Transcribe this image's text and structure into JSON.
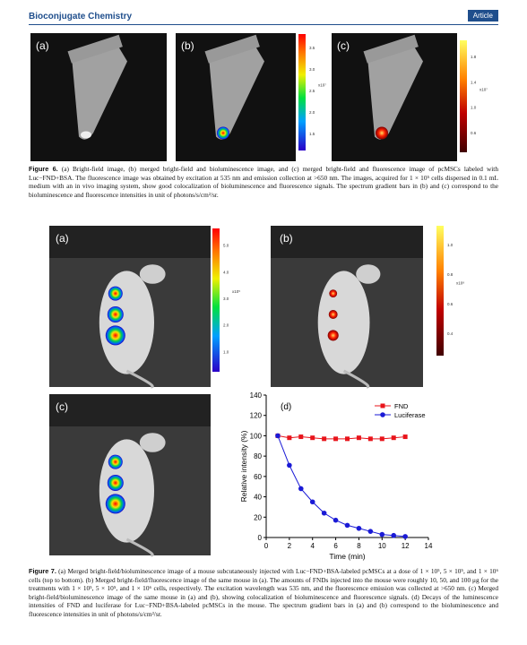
{
  "header": {
    "journal": "Bioconjugate Chemistry",
    "tag": "Article"
  },
  "figure6": {
    "panels": [
      "(a)",
      "(b)",
      "(c)"
    ],
    "colorbars": [
      {
        "labels": [
          "3.5",
          "3.0",
          "2.5",
          "2.0",
          "1.5"
        ],
        "unit": "x10⁷"
      },
      {
        "labels": [
          "1.8",
          "1.4",
          "1.0",
          "0.6"
        ],
        "unit": "x10⁷"
      }
    ],
    "caption_label": "Figure 6.",
    "caption": "(a) Bright-field image, (b) merged bright-field and bioluminescence image, and (c) merged bright-field and fluorescence image of pcMSCs labeled with Luc−FND+BSA. The fluorescence image was obtained by excitation at 535 nm and emission collection at >650 nm. The images, acquired for 1 × 10⁵ cells dispersed in 0.1 mL medium with an in vivo imaging system, show good colocalization of bioluminescence and fluorescence signals. The spectrum gradient bars in (b) and (c) correspond to the bioluminescence and fluorescence intensities in unit of photons/s/cm²/sr."
  },
  "figure7": {
    "panels": [
      "(a)",
      "(b)",
      "(c)"
    ],
    "colorbars": [
      {
        "labels": [
          "5.0",
          "4.0",
          "3.0",
          "2.0",
          "1.0"
        ],
        "unit": "x10⁵"
      },
      {
        "labels": [
          "1.0",
          "0.8",
          "0.6",
          "0.4"
        ],
        "unit": "x10⁸"
      }
    ],
    "caption_label": "Figure 7.",
    "caption": "(a) Merged bright-field/bioluminescence image of a mouse subcutaneously injected with Luc−FND+BSA-labeled pcMSCs at a dose of 1 × 10⁵, 5 × 10⁵, and 1 × 10⁶ cells (top to bottom). (b) Merged bright-field/fluorescence image of the same mouse in (a). The amounts of FNDs injected into the mouse were roughly 10, 50, and 100 μg for the treatments with 1 × 10⁵, 5 × 10⁵, and 1 × 10⁶ cells, respectively. The excitation wavelength was 535 nm, and the fluorescence emission was collected at >650 nm. (c) Merged bright-field/bioluminescence image of the same mouse in (a) and (b), showing colocalization of bioluminescence and fluorescence signals. (d) Decays of the luminescence intensities of FND and luciferase for Luc−FND+BSA-labeled pcMSCs in the mouse. The spectrum gradient bars in (a) and (b) correspond to the bioluminescence and fluorescence intensities in unit of photons/s/cm²/sr."
  },
  "chart_data": {
    "type": "line",
    "annotation": "(d)",
    "x_label": "Time (min)",
    "y_label": "Relative intensity (%)",
    "x": [
      1,
      2,
      3,
      4,
      5,
      6,
      7,
      8,
      9,
      10,
      11,
      12
    ],
    "series": [
      {
        "name": "FND",
        "color": "#e8141b",
        "marker": "square",
        "values": [
          100,
          98,
          99,
          98,
          97,
          97,
          97,
          98,
          97,
          97,
          98,
          99
        ]
      },
      {
        "name": "Luciferase",
        "color": "#1a1ad6",
        "marker": "circle",
        "values": [
          100,
          71,
          48,
          35,
          24,
          17,
          12,
          9,
          6,
          3,
          2,
          1
        ]
      }
    ],
    "xlim": [
      0,
      14
    ],
    "xticks": [
      0,
      2,
      4,
      6,
      8,
      10,
      12,
      14
    ],
    "ylim": [
      0,
      140
    ],
    "yticks": [
      0,
      20,
      40,
      60,
      80,
      100,
      120,
      140
    ],
    "legend": "upper right"
  }
}
